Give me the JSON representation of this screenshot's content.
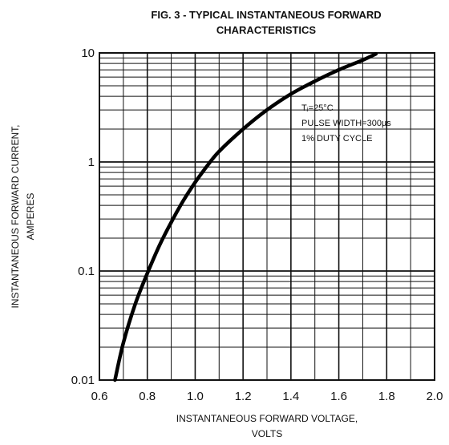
{
  "chart_data": {
    "type": "line",
    "title": [
      "FIG. 3 - TYPICAL INSTANTANEOUS FORWARD",
      "CHARACTERISTICS"
    ],
    "xlabel": [
      "INSTANTANEOUS FORWARD VOLTAGE,",
      "VOLTS"
    ],
    "ylabel": [
      "INSTANTANEOUS FORWARD CURRENT,",
      "AMPERES"
    ],
    "xlim": [
      0.6,
      2.0
    ],
    "ylim": [
      0.01,
      10
    ],
    "yscale": "log",
    "grid": true,
    "x_ticks": [
      "0.6",
      "0.8",
      "1.0",
      "1.2",
      "1.4",
      "1.6",
      "1.8",
      "2.0"
    ],
    "y_ticks": [
      "0.01",
      "0.1",
      "1",
      "10"
    ],
    "annotation": [
      "Tⱼ=25°C",
      "PULSE WIDTH=300µs",
      "1% DUTY CYCLE"
    ],
    "series": [
      {
        "x": [
          0.665,
          0.7,
          0.75,
          0.8,
          0.85,
          0.9,
          0.95,
          1.0,
          1.05,
          1.1,
          1.2,
          1.3,
          1.4,
          1.5,
          1.6,
          1.7,
          1.755
        ],
        "y": [
          0.01,
          0.022,
          0.05,
          0.095,
          0.17,
          0.28,
          0.44,
          0.65,
          0.92,
          1.25,
          2.0,
          3.0,
          4.2,
          5.5,
          7.0,
          8.6,
          9.8
        ]
      }
    ]
  }
}
